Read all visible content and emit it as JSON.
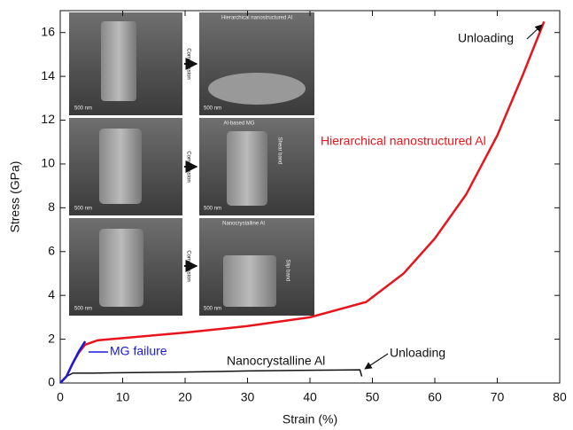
{
  "chart_data": {
    "type": "line",
    "xlabel": "Strain (%)",
    "ylabel": "Stress (GPa)",
    "xlim": [
      0,
      80
    ],
    "ylim": [
      0,
      17
    ],
    "xticks": [
      0,
      10,
      20,
      30,
      40,
      50,
      60,
      70,
      80
    ],
    "yticks": [
      0,
      2,
      4,
      6,
      8,
      10,
      12,
      14,
      16
    ],
    "series": [
      {
        "name": "Hierarchical nanostructured Al",
        "color": "#e8141c",
        "x": [
          0,
          1,
          2,
          3,
          4,
          5,
          6,
          10,
          20,
          30,
          40,
          49,
          55,
          60,
          65,
          70,
          74,
          77.5
        ],
        "values": [
          0,
          0.3,
          0.9,
          1.4,
          1.75,
          1.85,
          1.95,
          2.05,
          2.3,
          2.6,
          3.0,
          3.7,
          5.0,
          6.6,
          8.6,
          11.3,
          14.0,
          16.5
        ]
      },
      {
        "name": "MG failure",
        "color": "#1a1adc",
        "x": [
          0,
          1,
          2,
          3,
          4
        ],
        "values": [
          0,
          0.3,
          0.9,
          1.45,
          1.9
        ]
      },
      {
        "name": "Nanocrystalline Al",
        "color": "#111111",
        "x": [
          0,
          1,
          2,
          5,
          10,
          20,
          30,
          40,
          48,
          48.3
        ],
        "values": [
          0,
          0.3,
          0.45,
          0.45,
          0.47,
          0.5,
          0.55,
          0.58,
          0.6,
          0.3
        ]
      }
    ],
    "annotations": [
      "Unloading",
      "Unloading"
    ],
    "insets": {
      "titles": [
        "Hierarchical nanostructured Al",
        "Al-based MG",
        "Nanocrystalline Al"
      ],
      "action": "Compression",
      "scale": "500 nm",
      "features": [
        "Shear band",
        "Slip band"
      ]
    }
  }
}
